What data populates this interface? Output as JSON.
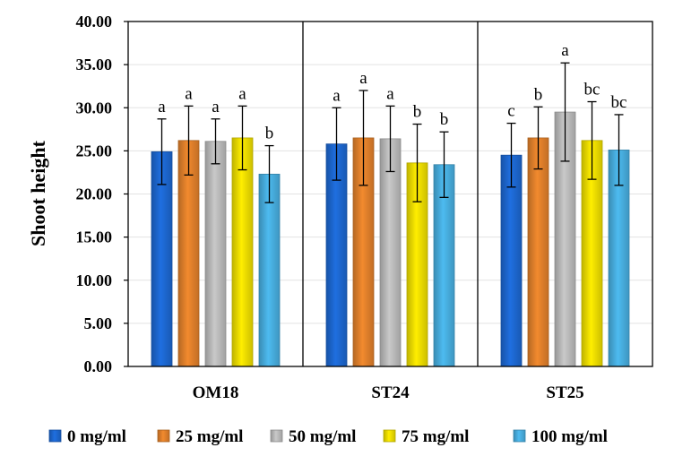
{
  "chart_data": {
    "type": "bar",
    "title": "",
    "xlabel": "",
    "ylabel": "Shoot height",
    "ylim": [
      0,
      40
    ],
    "y_ticks": [
      "0.00",
      "5.00",
      "10.00",
      "15.00",
      "20.00",
      "25.00",
      "30.00",
      "35.00",
      "40.00"
    ],
    "grid": true,
    "legend_position": "bottom",
    "categories": [
      "OM18",
      "ST24",
      "ST25"
    ],
    "series": [
      {
        "name": "0 mg/ml",
        "color": "#1f6fe0",
        "values": [
          24.9,
          25.8,
          24.5
        ],
        "error": [
          3.8,
          4.2,
          3.7
        ],
        "significance": [
          "a",
          "a",
          "c"
        ]
      },
      {
        "name": "25 mg/ml",
        "color": "#f28a2e",
        "values": [
          26.2,
          26.5,
          26.5
        ],
        "error": [
          4.0,
          5.5,
          3.6
        ],
        "significance": [
          "a",
          "a",
          "b"
        ]
      },
      {
        "name": "50 mg/ml",
        "color": "#c9c9c9",
        "values": [
          26.1,
          26.4,
          29.5
        ],
        "error": [
          2.6,
          3.8,
          5.7
        ],
        "significance": [
          "a",
          "a",
          "a"
        ]
      },
      {
        "name": "75 mg/ml",
        "color": "#ffee00",
        "values": [
          26.5,
          23.6,
          26.2
        ],
        "error": [
          3.7,
          4.5,
          4.5
        ],
        "significance": [
          "a",
          "b",
          "bc"
        ]
      },
      {
        "name": "100 mg/ml",
        "color": "#4dbbf0",
        "values": [
          22.3,
          23.4,
          25.1
        ],
        "error": [
          3.3,
          3.8,
          4.1
        ],
        "significance": [
          "b",
          "b",
          "bc"
        ]
      }
    ]
  }
}
